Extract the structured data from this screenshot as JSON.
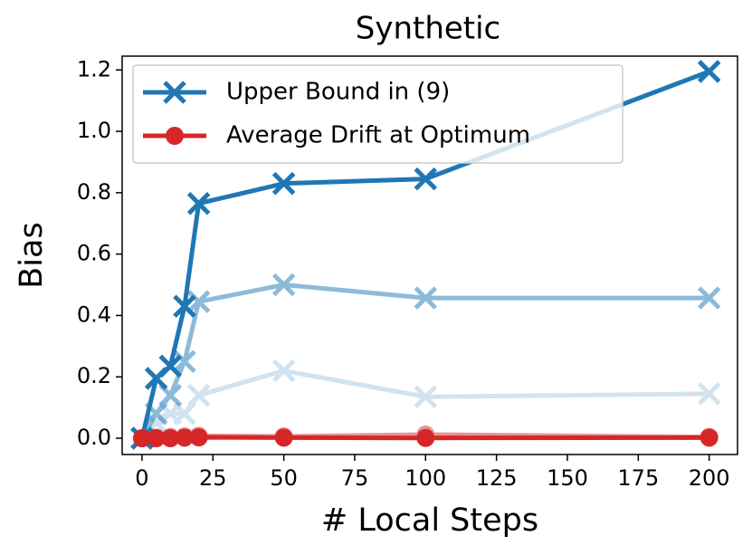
{
  "chart_data": {
    "type": "line",
    "title": "Synthetic",
    "xlabel": "# Local Steps",
    "ylabel": "Bias",
    "x": [
      0,
      5,
      10,
      15,
      20,
      50,
      100,
      200
    ],
    "series": [
      {
        "color": "#1f77b4",
        "alpha": 0.2,
        "marker": "x",
        "values": [
          0,
          0.05,
          0.08,
          0.08,
          0.14,
          0.22,
          0.135,
          0.145
        ]
      },
      {
        "color": "#1f77b4",
        "alpha": 0.5,
        "marker": "x",
        "values": [
          0,
          0.08,
          0.14,
          0.25,
          0.445,
          0.5,
          0.457,
          0.457
        ]
      },
      {
        "color": "#d62728",
        "alpha": 0.5,
        "marker": "o",
        "values": [
          0,
          0.002,
          0.004,
          0.006,
          0.008,
          0.006,
          0.012,
          0.004
        ]
      },
      {
        "name": "Upper Bound in (9)",
        "color": "#1f77b4",
        "alpha": 1,
        "marker": "x",
        "values": [
          0,
          0.195,
          0.235,
          0.43,
          0.765,
          0.83,
          0.845,
          1.195
        ]
      },
      {
        "name": "Average Drift at Optimum",
        "color": "#d62728",
        "alpha": 1,
        "marker": "o",
        "values": [
          0,
          0,
          0,
          0.002,
          0.003,
          0.002,
          0.001,
          0.002
        ]
      }
    ],
    "xlim": [
      -7,
      210
    ],
    "ylim": [
      -0.053,
      1.245
    ],
    "xticks": [
      0,
      25,
      50,
      75,
      100,
      125,
      150,
      175,
      200
    ],
    "yticks": [
      {
        "value": 0,
        "label": "0.0"
      },
      0.2,
      0.4,
      0.6,
      0.8,
      {
        "value": 1,
        "label": "1.0"
      },
      1.2
    ],
    "legend": "upper left",
    "grid": false
  }
}
